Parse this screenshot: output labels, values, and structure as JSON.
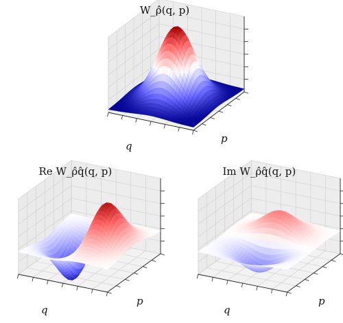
{
  "chart_data": [
    {
      "type": "surface",
      "title": "W_ρ̂(q, p)",
      "xlabel": "q",
      "ylabel": "p",
      "zlabel": "",
      "colormap": "bwr",
      "surface": {
        "function": "gaussian",
        "peak_amplitude": 1.0,
        "q_center": 0.0,
        "p_center": 0.0,
        "width": 1.0
      }
    },
    {
      "type": "surface",
      "title": "Re W_ρ̂q̂(q, p)",
      "xlabel": "q",
      "ylabel": "p",
      "zlabel": "",
      "colormap": "bwr",
      "surface": {
        "function": "q_times_gaussian",
        "peak_amplitude": 0.55,
        "min_amplitude": -0.55,
        "q_center": 0.0,
        "p_center": 0.0,
        "width": 1.0
      }
    },
    {
      "type": "surface",
      "title": "Im W_ρ̂q̂(q, p)",
      "xlabel": "q",
      "ylabel": "p",
      "zlabel": "",
      "colormap": "bwr",
      "surface": {
        "function": "p_times_gaussian",
        "peak_amplitude": 0.3,
        "min_amplitude": -0.3,
        "q_center": 0.0,
        "p_center": 0.0,
        "width": 1.0
      }
    }
  ]
}
